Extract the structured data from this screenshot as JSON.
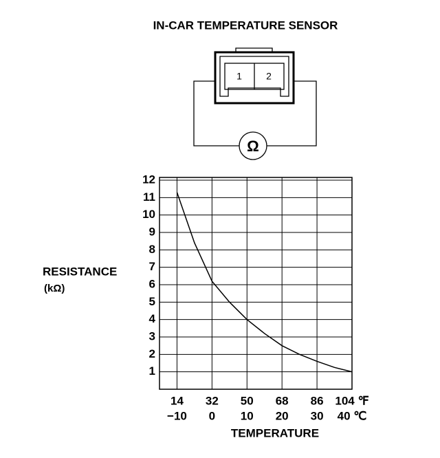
{
  "diagram": {
    "title": "IN-CAR TEMPERATURE SENSOR",
    "pins": [
      "1",
      "2"
    ],
    "meter": "Ω"
  },
  "chart_data": {
    "type": "line",
    "y_label": "RESISTANCE",
    "y_unit": "(kΩ)",
    "x_label": "TEMPERATURE",
    "x": [
      -10,
      -5,
      0,
      5,
      10,
      15,
      20,
      25,
      30,
      35,
      40
    ],
    "values": [
      11.3,
      8.4,
      6.2,
      5.0,
      4.0,
      3.2,
      2.5,
      2.0,
      1.6,
      1.25,
      1.0
    ],
    "color": "#000000",
    "xlim": [
      -15,
      40
    ],
    "xticks": [
      {
        "value": -10,
        "label": "−10"
      },
      0,
      10,
      20,
      30,
      {
        "value": 40,
        "label": "40 ℃"
      }
    ],
    "x2lim": [
      5,
      104
    ],
    "x2ticks": [
      14,
      32,
      50,
      68,
      86,
      {
        "value": 104,
        "label": "104 ℉"
      }
    ],
    "ylim": [
      0,
      12
    ],
    "yticks": [
      1,
      2,
      3,
      4,
      5,
      6,
      7,
      8,
      9,
      10,
      11,
      12
    ],
    "grid": true
  }
}
